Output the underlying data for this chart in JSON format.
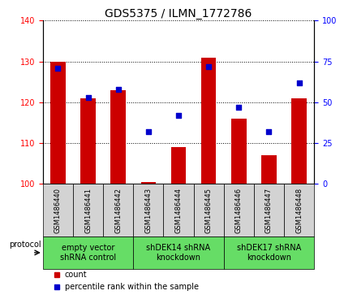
{
  "title": "GDS5375 / ILMN_1772786",
  "samples": [
    "GSM1486440",
    "GSM1486441",
    "GSM1486442",
    "GSM1486443",
    "GSM1486444",
    "GSM1486445",
    "GSM1486446",
    "GSM1486447",
    "GSM1486448"
  ],
  "counts": [
    130,
    121,
    123,
    100.5,
    109,
    131,
    116,
    107,
    121
  ],
  "percentile_ranks": [
    71,
    53,
    58,
    32,
    42,
    72,
    47,
    32,
    62
  ],
  "ylim_left": [
    100,
    140
  ],
  "ylim_right": [
    0,
    100
  ],
  "yticks_left": [
    100,
    110,
    120,
    130,
    140
  ],
  "yticks_right": [
    0,
    25,
    50,
    75,
    100
  ],
  "groups": [
    {
      "label": "empty vector\nshRNA control",
      "start": 0,
      "end": 2
    },
    {
      "label": "shDEK14 shRNA\nknockdown",
      "start": 3,
      "end": 5
    },
    {
      "label": "shDEK17 shRNA\nknockdown",
      "start": 6,
      "end": 8
    }
  ],
  "bar_color": "#cc0000",
  "dot_color": "#0000cc",
  "sample_box_color": "#d3d3d3",
  "group_box_color": "#66dd66",
  "protocol_label": "protocol",
  "legend_count": "count",
  "legend_pct": "percentile rank within the sample",
  "title_fontsize": 10,
  "tick_fontsize": 7,
  "sample_fontsize": 6,
  "group_fontsize": 7,
  "legend_fontsize": 7
}
